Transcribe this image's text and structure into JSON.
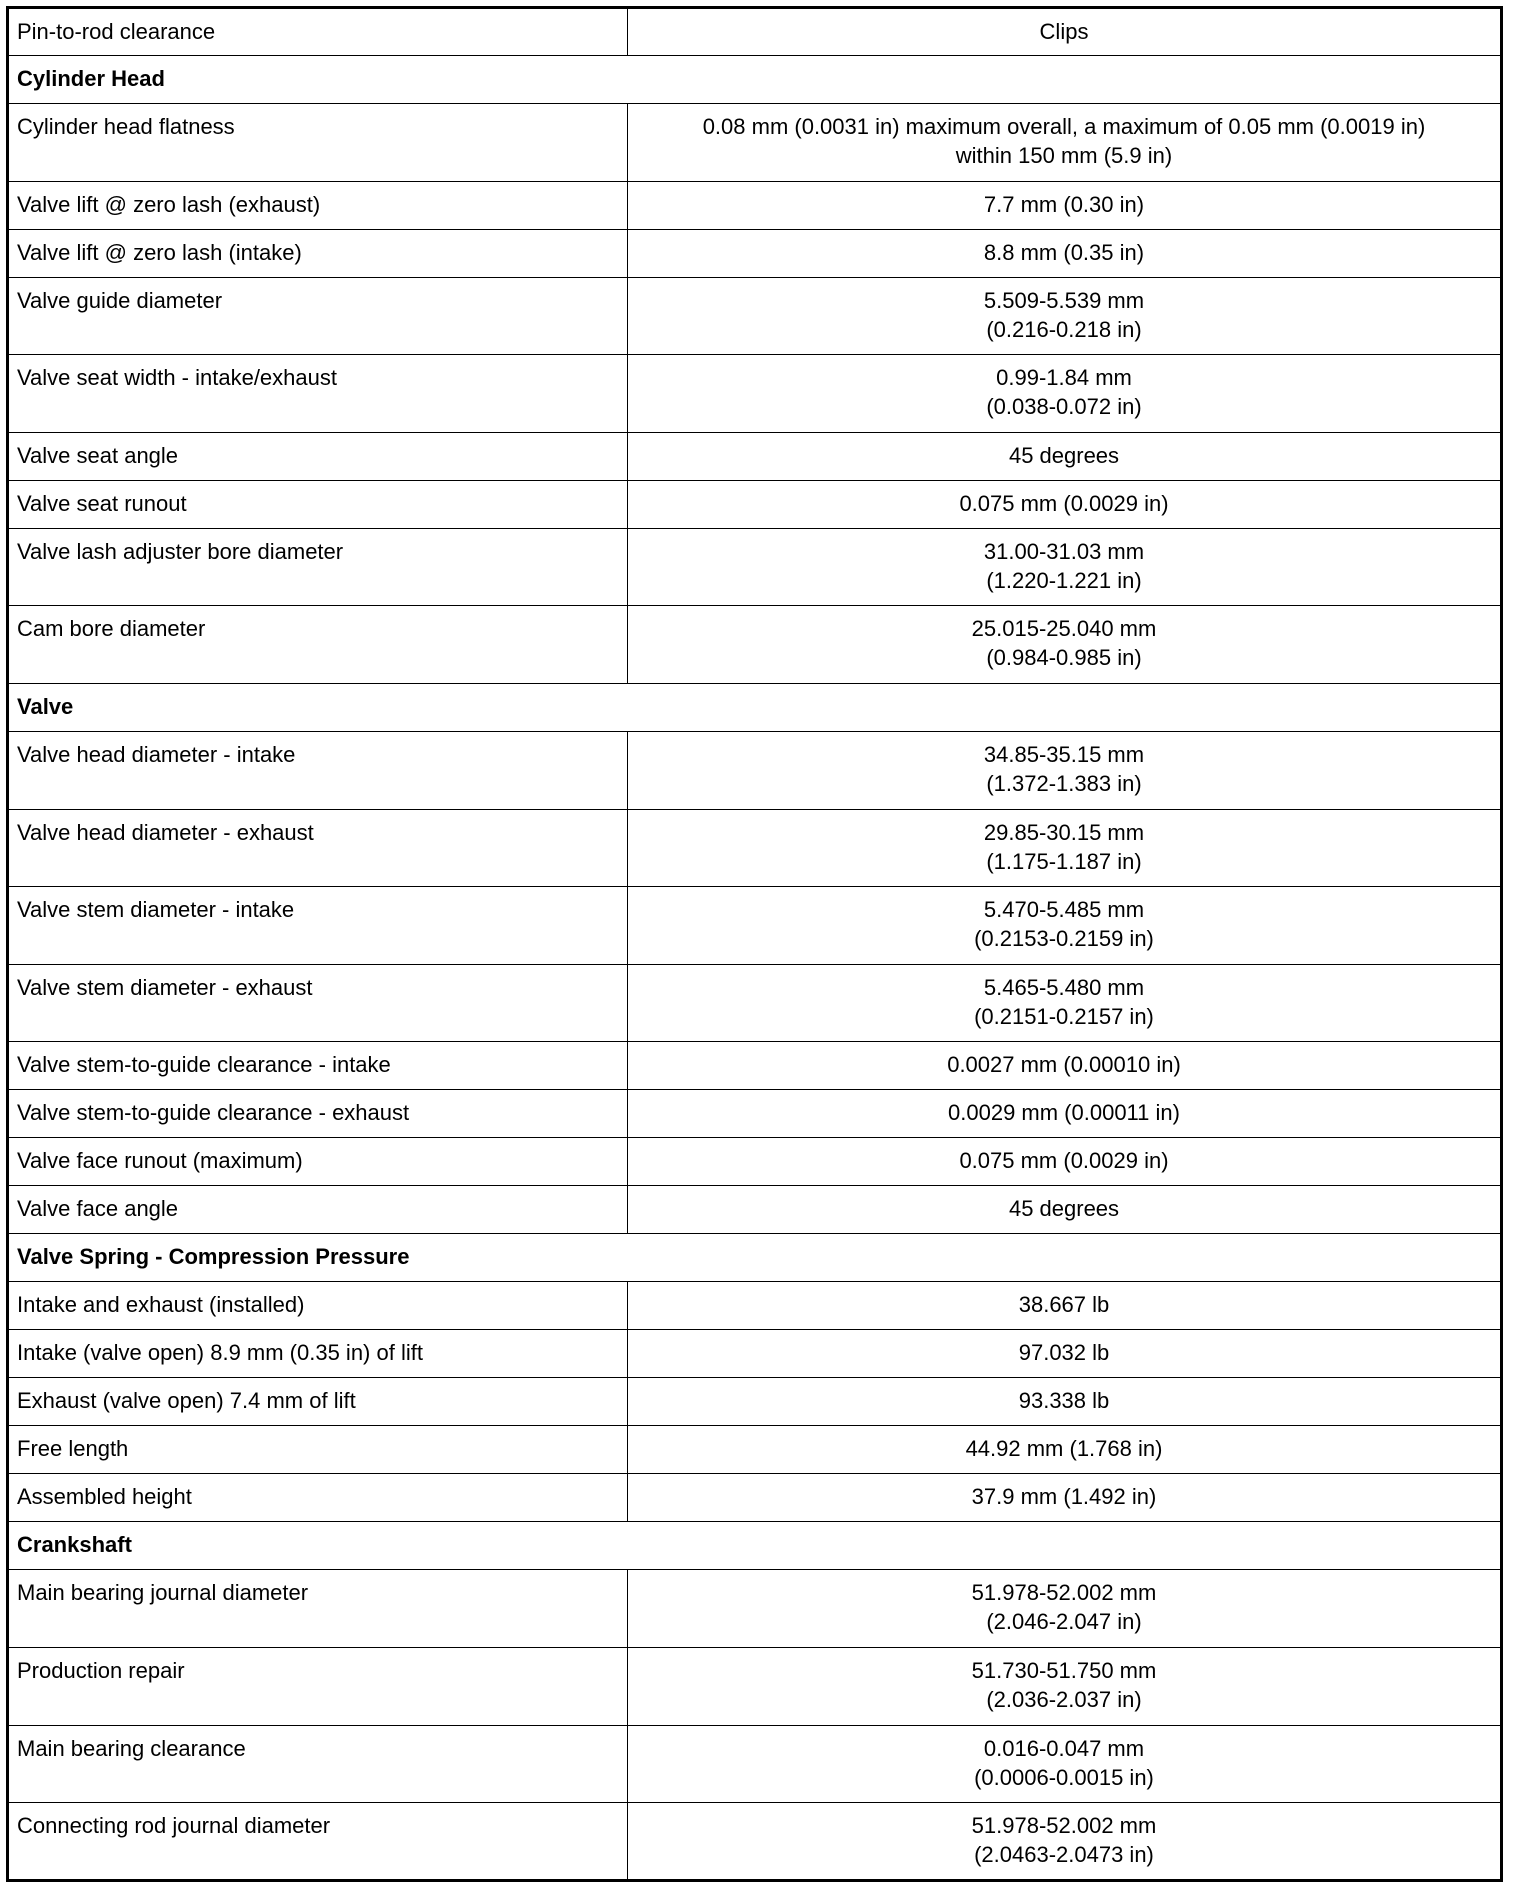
{
  "rows": [
    {
      "type": "row",
      "label": "Pin-to-rod clearance",
      "value": "Clips"
    },
    {
      "type": "section",
      "label": "Cylinder Head"
    },
    {
      "type": "row",
      "label": "Cylinder head flatness",
      "value": "0.08 mm (0.0031 in) maximum overall, a maximum of 0.05 mm (0.0019 in)",
      "value2": "within 150 mm (5.9 in)"
    },
    {
      "type": "row",
      "label": "Valve lift @ zero lash (exhaust)",
      "value": "7.7 mm (0.30 in)"
    },
    {
      "type": "row",
      "label": "Valve lift @ zero lash (intake)",
      "value": "8.8 mm (0.35 in)"
    },
    {
      "type": "row",
      "label": "Valve guide diameter",
      "value": "5.509-5.539 mm",
      "value2": "(0.216-0.218 in)"
    },
    {
      "type": "row",
      "label": "Valve seat width - intake/exhaust",
      "value": "0.99-1.84 mm",
      "value2": "(0.038-0.072 in)"
    },
    {
      "type": "row",
      "label": "Valve seat angle",
      "value": "45 degrees"
    },
    {
      "type": "row",
      "label": "Valve seat runout",
      "value": "0.075 mm (0.0029 in)"
    },
    {
      "type": "row",
      "label": "Valve lash adjuster bore diameter",
      "value": "31.00-31.03 mm",
      "value2": "(1.220-1.221 in)"
    },
    {
      "type": "row",
      "label": "Cam bore diameter",
      "value": "25.015-25.040 mm",
      "value2": "(0.984-0.985 in)"
    },
    {
      "type": "section",
      "label": "Valve"
    },
    {
      "type": "row",
      "label": "Valve head diameter - intake",
      "value": "34.85-35.15 mm",
      "value2": "(1.372-1.383 in)"
    },
    {
      "type": "row",
      "label": "Valve head diameter - exhaust",
      "value": "29.85-30.15 mm",
      "value2": "(1.175-1.187 in)"
    },
    {
      "type": "row",
      "label": "Valve stem diameter - intake",
      "value": "5.470-5.485 mm",
      "value2": "(0.2153-0.2159 in)"
    },
    {
      "type": "row",
      "label": "Valve stem diameter - exhaust",
      "value": "5.465-5.480 mm",
      "value2": "(0.2151-0.2157 in)"
    },
    {
      "type": "row",
      "label": "Valve stem-to-guide clearance - intake",
      "value": "0.0027 mm (0.00010 in)"
    },
    {
      "type": "row",
      "label": "Valve stem-to-guide clearance - exhaust",
      "value": "0.0029 mm (0.00011 in)"
    },
    {
      "type": "row",
      "label": "Valve face runout (maximum)",
      "value": "0.075 mm (0.0029 in)"
    },
    {
      "type": "row",
      "label": "Valve face angle",
      "value": "45 degrees"
    },
    {
      "type": "section",
      "label": "Valve Spring - Compression Pressure"
    },
    {
      "type": "row",
      "label": "Intake and exhaust (installed)",
      "value": "38.667 lb"
    },
    {
      "type": "row",
      "label": "Intake (valve open) 8.9 mm (0.35 in) of lift",
      "value": "97.032 lb"
    },
    {
      "type": "row",
      "label": "Exhaust (valve open) 7.4 mm of lift",
      "value": "93.338 lb"
    },
    {
      "type": "row",
      "label": "Free length",
      "value": "44.92 mm (1.768 in)"
    },
    {
      "type": "row",
      "label": "Assembled height",
      "value": "37.9 mm (1.492 in)"
    },
    {
      "type": "section",
      "label": "Crankshaft"
    },
    {
      "type": "row",
      "label": "Main bearing journal diameter",
      "value": "51.978-52.002 mm",
      "value2": "(2.046-2.047 in)"
    },
    {
      "type": "row",
      "label": "Production repair",
      "value": "51.730-51.750 mm",
      "value2": "(2.036-2.037 in)"
    },
    {
      "type": "row",
      "label": "Main bearing clearance",
      "value": "0.016-0.047 mm",
      "value2": "(0.0006-0.0015 in)"
    },
    {
      "type": "row",
      "label": "Connecting rod journal diameter",
      "value": "51.978-52.002 mm",
      "value2": "(2.0463-2.0473 in)"
    }
  ]
}
